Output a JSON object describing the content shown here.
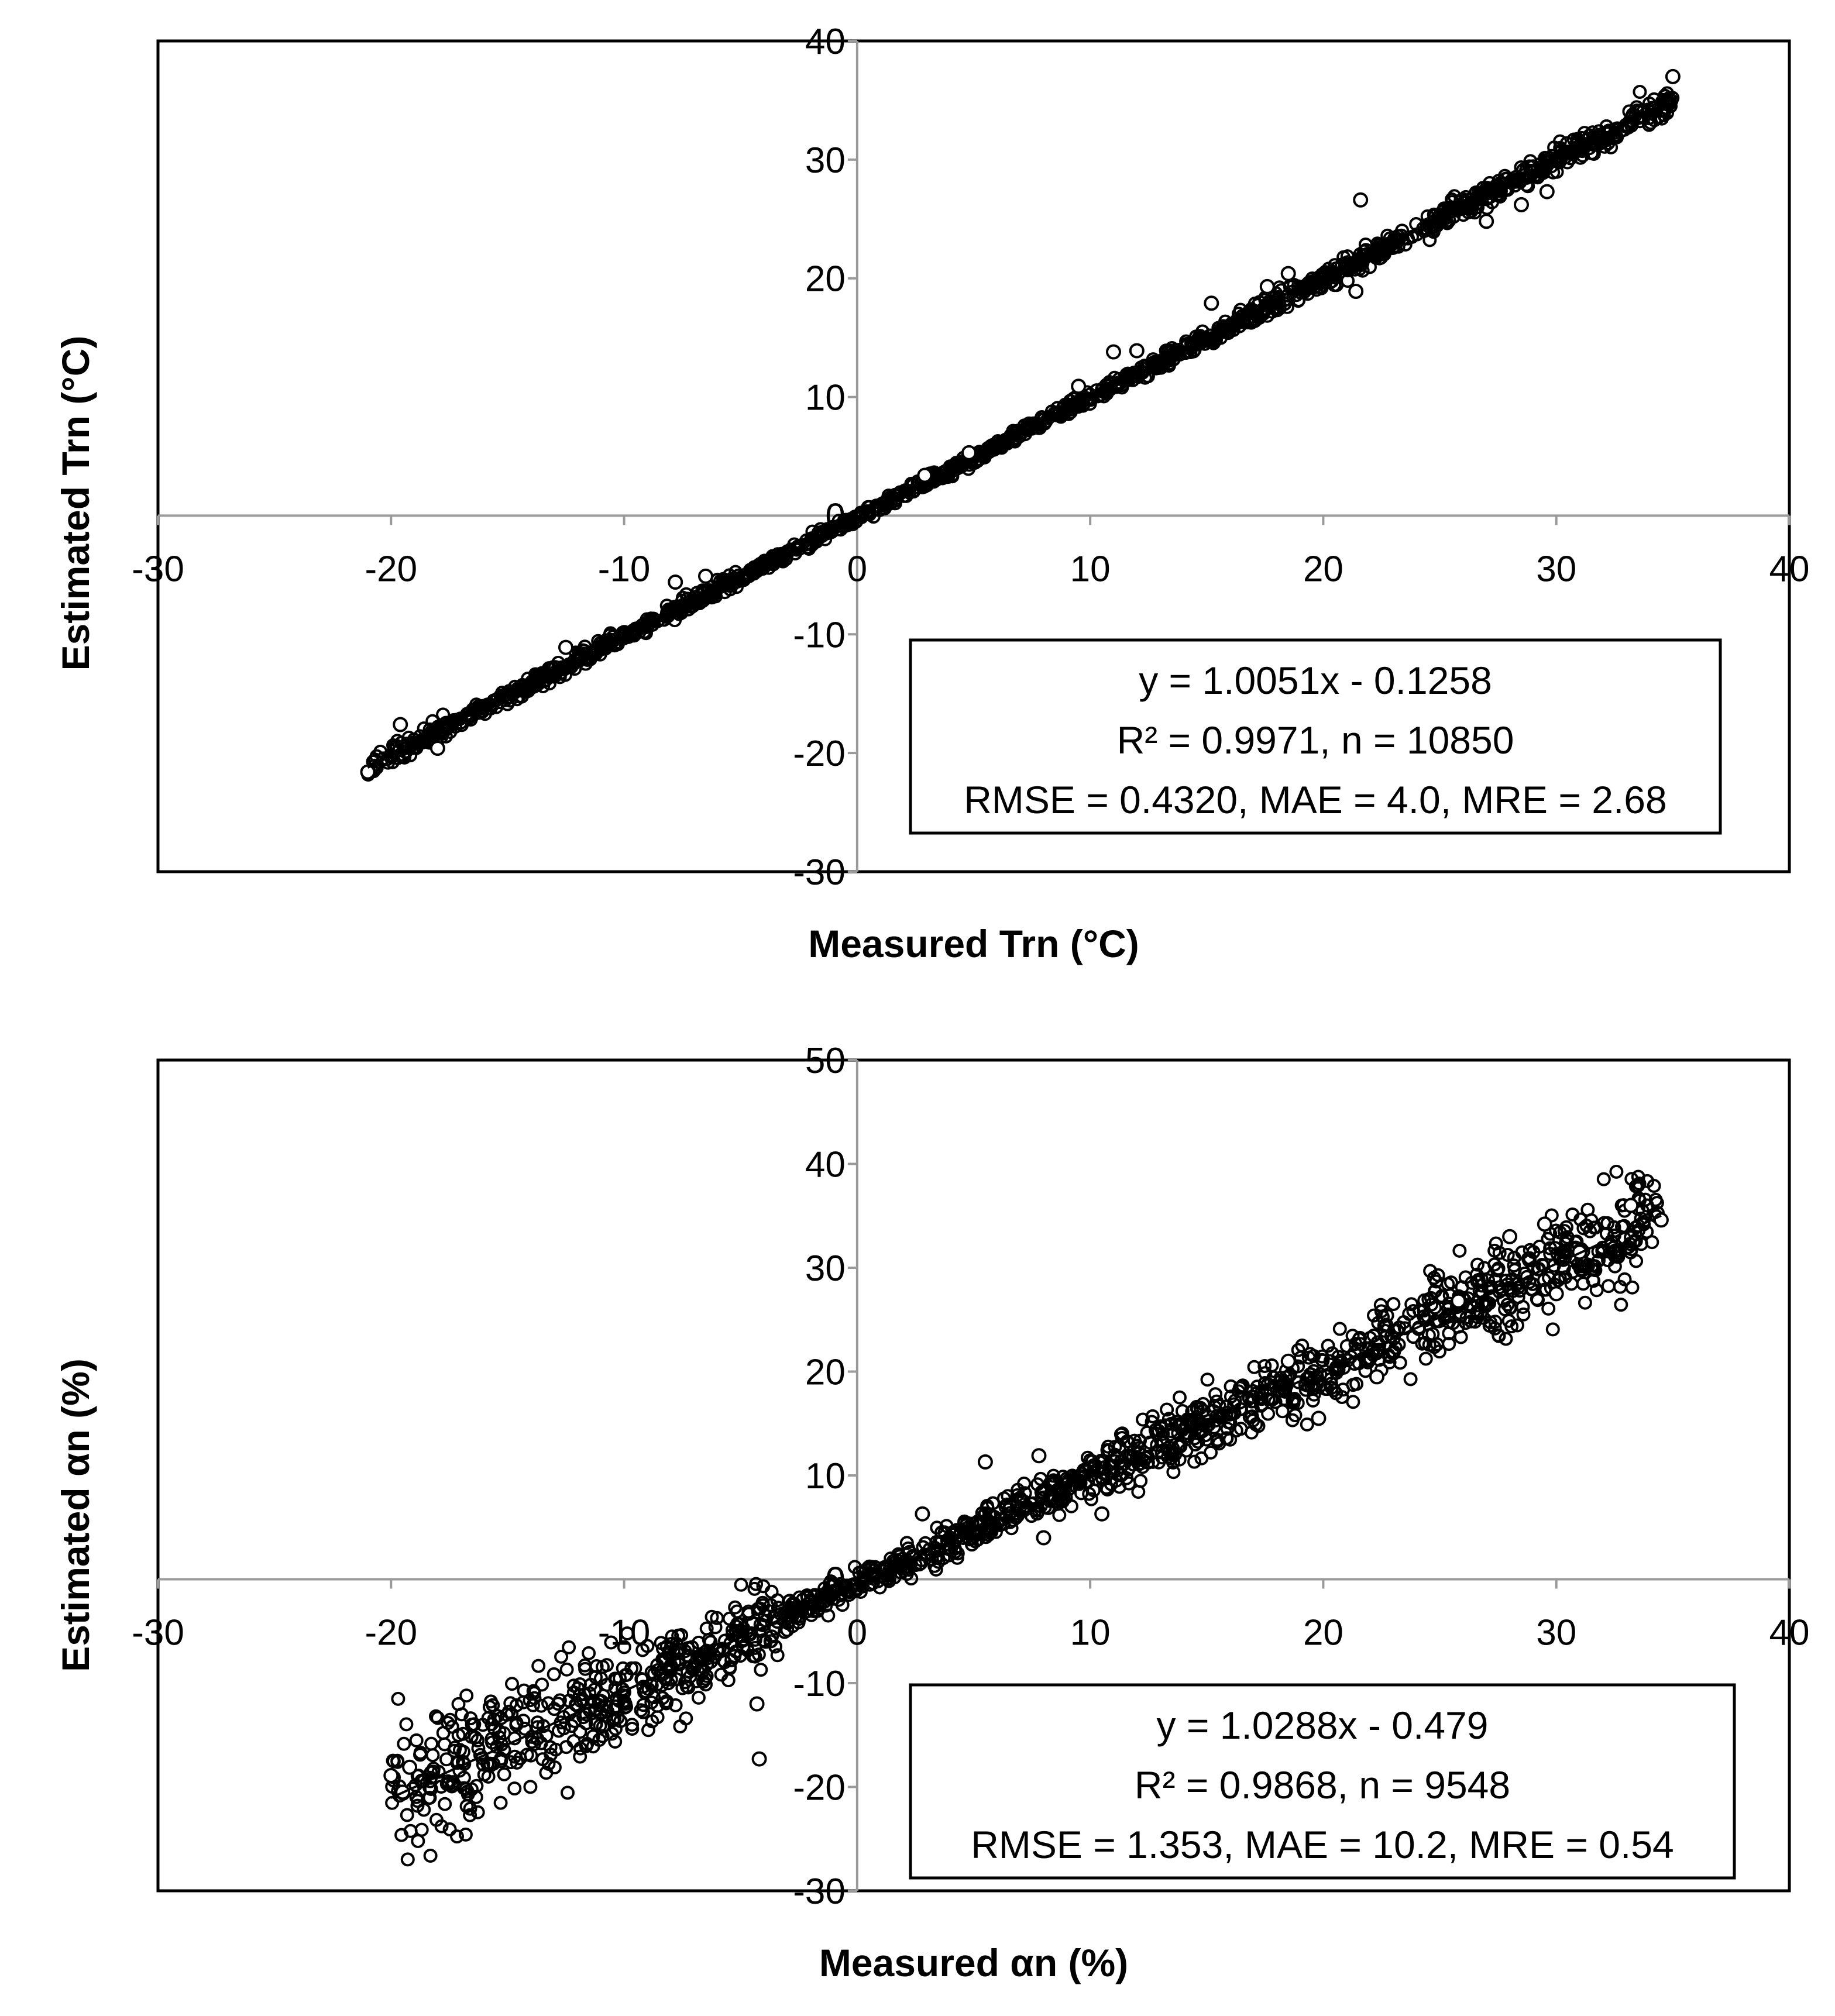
{
  "chart_data": [
    {
      "type": "scatter",
      "title": "",
      "xlabel": "Measured Trn (°C)",
      "ylabel": "Estimated Trn (°C)",
      "xlim": [
        -30,
        40
      ],
      "ylim": [
        -30,
        40
      ],
      "x_ticks": [
        "-30",
        "-20",
        "-10",
        "0",
        "10",
        "20",
        "30",
        "40"
      ],
      "y_ticks": [
        "-30",
        "-20",
        "-10",
        "0",
        "10",
        "20",
        "30",
        "40"
      ],
      "trendline": {
        "slope": 1.0051,
        "intercept": -0.1258,
        "x_range": [
          -21,
          35
        ]
      },
      "stats": {
        "equation": "y = 1.0051x - 0.1258",
        "r2_n": "R² = 0.9971, n = 10850",
        "errors": "RMSE = 0.4320, MAE = 4.0, MRE = 2.68"
      },
      "legend_position": "bottom-right",
      "marker_color": "#000000",
      "outliers": [
        {
          "x": -19.6,
          "y": -17.6
        },
        {
          "x": -12.5,
          "y": -11.1
        },
        {
          "x": -7.8,
          "y": -5.6
        },
        {
          "x": -6.5,
          "y": -5.1
        },
        {
          "x": 4.8,
          "y": 5.3
        },
        {
          "x": 2.9,
          "y": 3.4
        },
        {
          "x": 9.5,
          "y": 10.9
        },
        {
          "x": 11.0,
          "y": 13.8
        },
        {
          "x": 12.0,
          "y": 13.9
        },
        {
          "x": 15.2,
          "y": 17.9
        },
        {
          "x": 17.6,
          "y": 19.3
        },
        {
          "x": 18.5,
          "y": 20.4
        },
        {
          "x": 21.6,
          "y": 26.6
        },
        {
          "x": 21.4,
          "y": 18.9
        },
        {
          "x": 27.0,
          "y": 24.8
        },
        {
          "x": 28.5,
          "y": 26.2
        },
        {
          "x": 29.6,
          "y": 27.3
        },
        {
          "x": 35.0,
          "y": 37.0
        },
        {
          "x": -21.0,
          "y": -21.6
        },
        {
          "x": -18.0,
          "y": -19.6
        }
      ]
    },
    {
      "type": "scatter",
      "title": "",
      "xlabel": "Measured αn (%)",
      "ylabel": "Estimated αn (%)",
      "xlim": [
        -30,
        40
      ],
      "ylim": [
        -30,
        50
      ],
      "x_ticks": [
        "-30",
        "-20",
        "-10",
        "0",
        "10",
        "20",
        "30",
        "40"
      ],
      "y_ticks": [
        "-30",
        "-20",
        "-10",
        "0",
        "10",
        "20",
        "30",
        "40",
        "50"
      ],
      "trendline": {
        "slope": 1.0288,
        "intercept": -0.479,
        "x_range": [
          -20,
          34.5
        ]
      },
      "stats": {
        "equation": "y = 1.0288x - 0.479",
        "r2_n": "R² = 0.9868, n = 9548",
        "errors": "RMSE = 1.353, MAE =  10.2, MRE = 0.54"
      },
      "legend_position": "bottom-right",
      "marker_color": "#000000",
      "outliers": [
        {
          "x": -20.0,
          "y": -18.9
        },
        {
          "x": -19.5,
          "y": -20.5
        },
        {
          "x": -19.2,
          "y": -18.1
        },
        {
          "x": -4.2,
          "y": -17.3
        },
        {
          "x": -4.3,
          "y": -12.0
        },
        {
          "x": 5.5,
          "y": 11.3
        },
        {
          "x": 2.8,
          "y": 6.3
        },
        {
          "x": 7.8,
          "y": 11.9
        },
        {
          "x": 8.0,
          "y": 4.0
        },
        {
          "x": 18.5,
          "y": 21.0
        },
        {
          "x": 22.3,
          "y": 19.5
        },
        {
          "x": 29.5,
          "y": 34.2
        },
        {
          "x": 28.0,
          "y": 33.0
        },
        {
          "x": 30.0,
          "y": 27.5
        },
        {
          "x": 33.2,
          "y": 36.0
        },
        {
          "x": 34.5,
          "y": 34.6
        },
        {
          "x": 31.0,
          "y": 31.5
        },
        {
          "x": 25.8,
          "y": 26.8
        },
        {
          "x": 19.8,
          "y": 15.5
        },
        {
          "x": 10.5,
          "y": 6.3
        }
      ]
    }
  ]
}
